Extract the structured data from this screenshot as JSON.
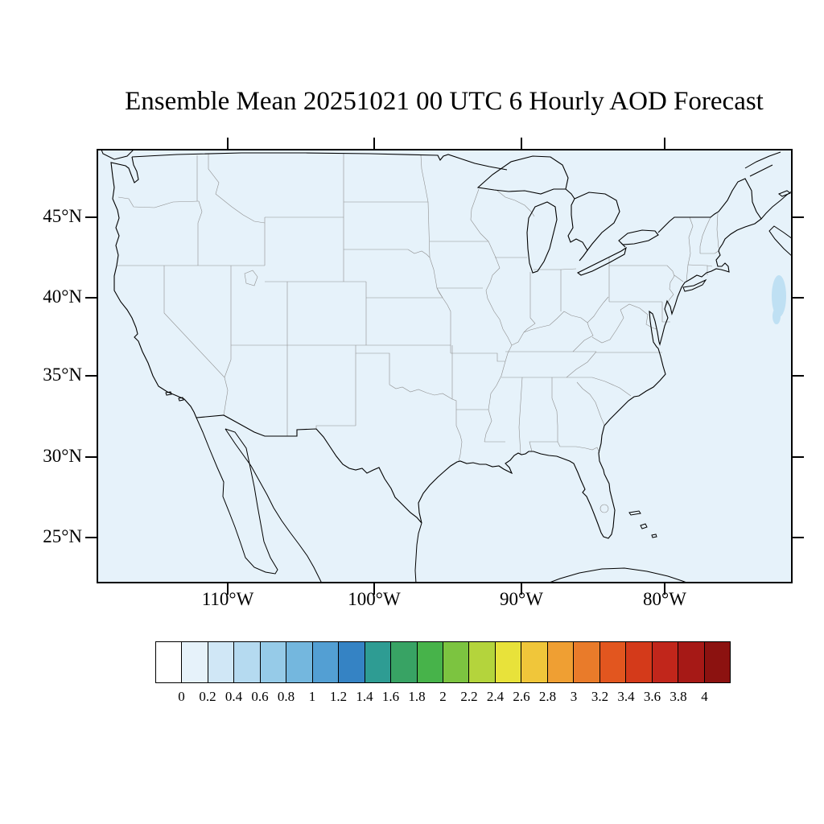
{
  "title": "Ensemble Mean 20251021 00 UTC 6 Hourly AOD Forecast",
  "map": {
    "lat_ticks": [
      "45°N",
      "40°N",
      "35°N",
      "30°N",
      "25°N"
    ],
    "lon_ticks": [
      "110°W",
      "100°W",
      "90°W",
      "80°W"
    ],
    "background_color": "#e6f2fa",
    "plume_color": "#bfe0f3"
  },
  "colorbar": {
    "labels": [
      "0",
      "0.2",
      "0.4",
      "0.6",
      "0.8",
      "1",
      "1.2",
      "1.4",
      "1.6",
      "1.8",
      "2",
      "2.2",
      "2.4",
      "2.6",
      "2.8",
      "3",
      "3.2",
      "3.4",
      "3.6",
      "3.8",
      "4"
    ],
    "colors": [
      "#ffffff",
      "#e6f2fa",
      "#d0e7f6",
      "#b5daf0",
      "#96cbe8",
      "#74b7de",
      "#539fd3",
      "#3583c4",
      "#2e9c93",
      "#38a364",
      "#47b34a",
      "#7cc440",
      "#b4d43c",
      "#e8e23a",
      "#f0c63a",
      "#ef9f33",
      "#e97b2a",
      "#e2561f",
      "#d43a1a",
      "#c1261b",
      "#a61916",
      "#8c1210"
    ]
  },
  "chart_data": {
    "type": "heatmap",
    "title": "Ensemble Mean 20251021 00 UTC 6 Hourly AOD Forecast",
    "variable": "Aerosol Optical Depth (AOD)",
    "region": "Continental United States",
    "x_ticks": [
      "110°W",
      "100°W",
      "90°W",
      "80°W"
    ],
    "y_ticks": [
      "45°N",
      "40°N",
      "35°N",
      "30°N",
      "25°N"
    ],
    "colorbar_levels": [
      0,
      0.2,
      0.4,
      0.6,
      0.8,
      1,
      1.2,
      1.4,
      1.6,
      1.8,
      2,
      2.2,
      2.4,
      2.6,
      2.8,
      3,
      3.2,
      3.4,
      3.6,
      3.8,
      4
    ],
    "field_summary": "AOD below 0.2 over nearly the entire domain; a small patch of roughly 0.2-0.4 in the Atlantic near 40N off the northeast coast"
  }
}
